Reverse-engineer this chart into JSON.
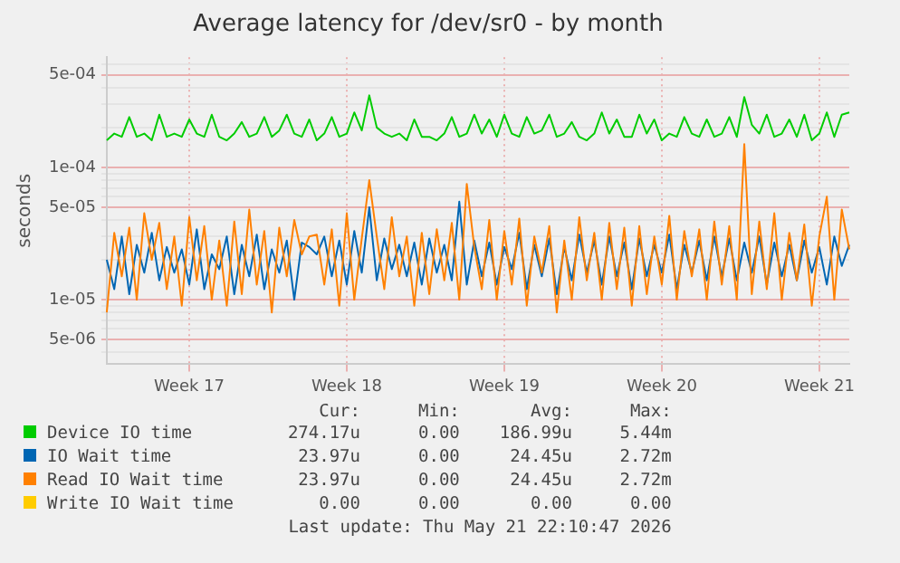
{
  "chart_data": {
    "type": "line",
    "title": "Average latency for /dev/sr0 - by month",
    "ylabel": "seconds",
    "log": "y",
    "grid": true,
    "legend": "bottom",
    "marker": "none",
    "line_style": "solid",
    "categories": [
      null,
      null,
      null,
      null,
      null,
      null,
      null,
      null,
      null,
      null,
      null,
      "Week 17",
      null,
      null,
      null,
      null,
      null,
      null,
      null,
      null,
      null,
      null,
      null,
      null,
      null,
      null,
      null,
      null,
      null,
      null,
      null,
      null,
      "Week 18",
      null,
      null,
      null,
      null,
      null,
      null,
      null,
      null,
      null,
      null,
      null,
      null,
      null,
      null,
      null,
      null,
      null,
      null,
      null,
      null,
      "Week 19",
      null,
      null,
      null,
      null,
      null,
      null,
      null,
      null,
      null,
      null,
      null,
      null,
      null,
      null,
      null,
      null,
      null,
      null,
      null,
      null,
      "Week 20",
      null,
      null,
      null,
      null,
      null,
      null,
      null,
      null,
      null,
      null,
      null,
      null,
      null,
      null,
      null,
      null,
      null,
      null,
      null,
      null,
      "Week 21",
      null,
      null,
      null,
      null
    ],
    "ylim": [
      3.25e-06,
      0.00068
    ],
    "yticks": [
      {
        "value": 4e-06,
        "label": null
      },
      {
        "value": 5e-06,
        "label": "5e-06"
      },
      {
        "value": 6e-06,
        "label": null
      },
      {
        "value": 7e-06,
        "label": null
      },
      {
        "value": 8e-06,
        "label": null
      },
      {
        "value": 9e-06,
        "label": null
      },
      {
        "value": 1e-05,
        "label": "1e-05"
      },
      {
        "value": 2e-05,
        "label": null
      },
      {
        "value": 3e-05,
        "label": null
      },
      {
        "value": 4e-05,
        "label": null
      },
      {
        "value": 5e-05,
        "label": "5e-05"
      },
      {
        "value": 6e-05,
        "label": null
      },
      {
        "value": 7e-05,
        "label": null
      },
      {
        "value": 8e-05,
        "label": null
      },
      {
        "value": 9e-05,
        "label": null
      },
      {
        "value": 0.0001,
        "label": "1e-04"
      },
      {
        "value": 0.0002,
        "label": null
      },
      {
        "value": 0.0003,
        "label": null
      },
      {
        "value": 0.0004,
        "label": null
      },
      {
        "value": 0.0005,
        "label": "5e-04"
      },
      {
        "value": 0.0006,
        "label": null
      }
    ],
    "series": [
      {
        "name": "Device IO time",
        "color": "#00cc00",
        "values": [
          0.00016,
          0.00018,
          0.00017,
          0.00024,
          0.00017,
          0.00018,
          0.00016,
          0.00025,
          0.00017,
          0.00018,
          0.00017,
          0.00023,
          0.00018,
          0.00017,
          0.00025,
          0.00017,
          0.00016,
          0.00018,
          0.00022,
          0.00017,
          0.00018,
          0.00024,
          0.00017,
          0.00019,
          0.00025,
          0.00018,
          0.00017,
          0.00023,
          0.00016,
          0.00018,
          0.00024,
          0.00017,
          0.00018,
          0.00026,
          0.00019,
          0.00035,
          0.0002,
          0.00018,
          0.00017,
          0.00018,
          0.00016,
          0.00023,
          0.00017,
          0.00017,
          0.00016,
          0.00018,
          0.00024,
          0.00017,
          0.00018,
          0.00025,
          0.00018,
          0.00023,
          0.00017,
          0.00025,
          0.00018,
          0.00017,
          0.00024,
          0.00018,
          0.00019,
          0.00025,
          0.00017,
          0.00018,
          0.00022,
          0.00017,
          0.00016,
          0.00018,
          0.00026,
          0.00018,
          0.00023,
          0.00017,
          0.00017,
          0.00025,
          0.00018,
          0.00023,
          0.00016,
          0.00018,
          0.00017,
          0.00024,
          0.00018,
          0.00017,
          0.00023,
          0.00017,
          0.00018,
          0.00024,
          0.00017,
          0.00034,
          0.00021,
          0.00018,
          0.00025,
          0.00017,
          0.00018,
          0.00023,
          0.00017,
          0.00025,
          0.00016,
          0.00018,
          0.00026,
          0.00017,
          0.00025,
          0.00026
        ]
      },
      {
        "name": "IO Wait time",
        "color": "#0066b3",
        "values": [
          2e-05,
          1.2e-05,
          3e-05,
          1.1e-05,
          2.6e-05,
          1.6e-05,
          3.2e-05,
          1.4e-05,
          2.5e-05,
          1.6e-05,
          2.4e-05,
          1.3e-05,
          3.4e-05,
          1.2e-05,
          2.2e-05,
          1.7e-05,
          3e-05,
          1.1e-05,
          2.6e-05,
          1.5e-05,
          3.1e-05,
          1.2e-05,
          2.4e-05,
          1.6e-05,
          2.8e-05,
          1e-05,
          2.7e-05,
          2.5e-05,
          2.2e-05,
          3e-05,
          1.5e-05,
          2.8e-05,
          1.3e-05,
          3.3e-05,
          1.6e-05,
          5e-05,
          1.4e-05,
          2.9e-05,
          1.7e-05,
          2.6e-05,
          1.5e-05,
          2.7e-05,
          1.3e-05,
          2.9e-05,
          1.6e-05,
          2.6e-05,
          1.4e-05,
          5.5e-05,
          1.3e-05,
          2.8e-05,
          1.5e-05,
          2.7e-05,
          1.3e-05,
          2.5e-05,
          1.7e-05,
          3.2e-05,
          1.2e-05,
          2.6e-05,
          1.5e-05,
          2.9e-05,
          1.1e-05,
          2.5e-05,
          1.4e-05,
          3.1e-05,
          1.6e-05,
          2.8e-05,
          1.3e-05,
          3e-05,
          1.5e-05,
          2.7e-05,
          1.2e-05,
          2.9e-05,
          1.5e-05,
          2.6e-05,
          1.6e-05,
          3.1e-05,
          1.2e-05,
          2.6e-05,
          1.6e-05,
          2.8e-05,
          1.4e-05,
          3e-05,
          1.5e-05,
          2.9e-05,
          1.4e-05,
          2.7e-05,
          1.6e-05,
          3e-05,
          1.3e-05,
          2.7e-05,
          1.5e-05,
          2.6e-05,
          1.4e-05,
          2.8e-05,
          1.6e-05,
          2.5e-05,
          1.3e-05,
          3e-05,
          1.8e-05,
          2.6e-05
        ]
      },
      {
        "name": "Read IO Wait time",
        "color": "#ff8000",
        "values": [
          8e-06,
          3.2e-05,
          1.5e-05,
          3.5e-05,
          1e-05,
          4.5e-05,
          2e-05,
          3.8e-05,
          1.2e-05,
          3e-05,
          9e-06,
          4.2e-05,
          1.4e-05,
          3.6e-05,
          1e-05,
          2.8e-05,
          9e-06,
          3.9e-05,
          1.1e-05,
          4.8e-05,
          1.3e-05,
          3.3e-05,
          8e-06,
          3.5e-05,
          1.5e-05,
          4e-05,
          2.2e-05,
          3e-05,
          3.1e-05,
          1.3e-05,
          3.4e-05,
          9e-06,
          4.5e-05,
          1e-05,
          2.9e-05,
          8e-05,
          3e-05,
          1.2e-05,
          4.2e-05,
          1.5e-05,
          3e-05,
          9e-06,
          3.2e-05,
          1.1e-05,
          3.4e-05,
          1.4e-05,
          3.8e-05,
          1e-05,
          7.5e-05,
          2.5e-05,
          1.2e-05,
          4e-05,
          1e-05,
          3.3e-05,
          1.3e-05,
          4.1e-05,
          9e-06,
          3e-05,
          1.6e-05,
          3.6e-05,
          8e-06,
          2.8e-05,
          1e-05,
          4.2e-05,
          1.4e-05,
          3.2e-05,
          1e-05,
          3.8e-05,
          1.2e-05,
          3.5e-05,
          9e-06,
          3.6e-05,
          1.1e-05,
          3e-05,
          1.3e-05,
          4.3e-05,
          1e-05,
          3.3e-05,
          1.5e-05,
          3.4e-05,
          1e-05,
          3.9e-05,
          1.3e-05,
          3.6e-05,
          1e-05,
          0.00015,
          1.1e-05,
          3.9e-05,
          1.2e-05,
          4.5e-05,
          1e-05,
          3.2e-05,
          1.4e-05,
          3.7e-05,
          9e-06,
          3e-05,
          6e-05,
          1e-05,
          4.8e-05,
          2.4e-05
        ]
      },
      {
        "name": "Write IO Wait time",
        "color": "#ffcc00",
        "values": [
          null,
          null,
          null,
          null,
          null,
          null,
          null,
          null,
          null,
          null,
          null,
          null,
          null,
          null,
          null,
          null,
          null,
          null,
          null,
          null,
          null,
          null,
          null,
          null,
          null,
          null,
          null,
          null,
          null,
          null,
          null,
          null,
          null,
          null,
          null,
          null,
          null,
          null,
          null,
          null,
          null,
          null,
          null,
          null,
          null,
          null,
          null,
          null,
          null,
          null,
          null,
          null,
          null,
          null,
          null,
          null,
          null,
          null,
          null,
          null,
          null,
          null,
          null,
          null,
          null,
          null,
          null,
          null,
          null,
          null,
          null,
          null,
          null,
          null,
          null,
          null,
          null,
          null,
          null,
          null,
          null,
          null,
          null,
          null,
          null,
          null,
          null,
          null,
          null,
          null,
          null,
          null,
          null,
          null,
          null,
          null,
          null,
          null,
          null,
          null
        ]
      }
    ],
    "annotations": [
      "Cur:",
      "Min:",
      "Avg:",
      "Max:",
      "274.17u",
      "0.00",
      "186.99u",
      "5.44m",
      "23.97u",
      "0.00",
      "24.45u",
      "2.72m",
      "23.97u",
      "0.00",
      "24.45u",
      "2.72m",
      "0.00",
      "0.00",
      "0.00",
      "0.00",
      "Last update: Thu May 21 22:10:47 2026"
    ]
  }
}
